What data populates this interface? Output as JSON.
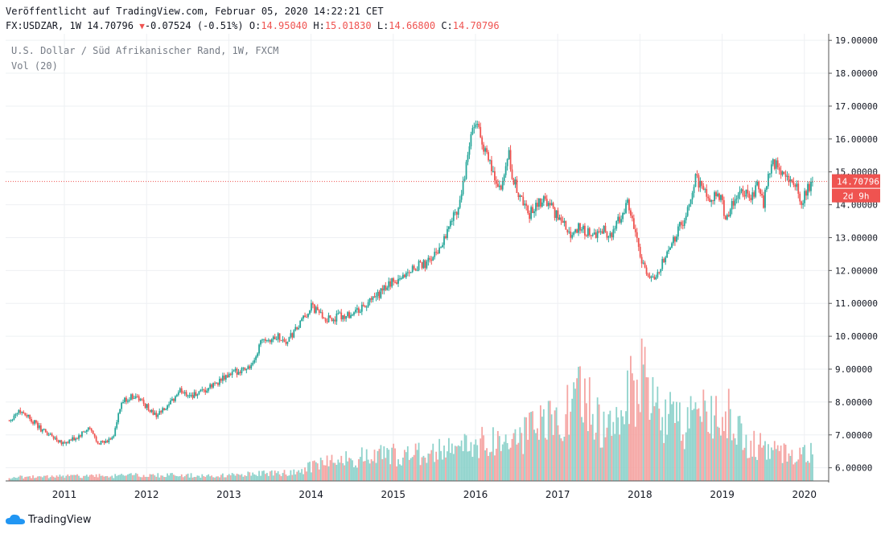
{
  "header": {
    "published": "Veröffentlicht auf TradingView.com, Februar 05, 2020 14:22:21 CET",
    "symbol_line_prefix": "FX:USDZAR, 1W 14.70796",
    "change": "-0.07524 (-0.51%)",
    "o_label": "O:",
    "o_value": "14.95040",
    "h_label": "H:",
    "h_value": "15.01830",
    "l_label": "L:",
    "l_value": "14.66800",
    "c_label": "C:",
    "c_value": "14.70796"
  },
  "legend": {
    "title": "U.S. Dollar / Süd Afrikanischer Rand, 1W, FXCM",
    "volume": "Vol (20)"
  },
  "footer": {
    "brand": "TradingView"
  },
  "colors": {
    "up": "#26a69a",
    "down": "#ef5350",
    "up_vol": "#8fd3cc",
    "down_vol": "#f5a5a3",
    "grid": "#eef0f3"
  },
  "chart_data": {
    "type": "candlestick",
    "symbol": "FX:USDZAR",
    "interval": "1W",
    "x_ticks": [
      "2011",
      "2012",
      "2013",
      "2014",
      "2015",
      "2016",
      "2017",
      "2018",
      "2019",
      "2020"
    ],
    "y_ticks": [
      "6.00000",
      "7.00000",
      "8.00000",
      "9.00000",
      "10.00000",
      "11.00000",
      "12.00000",
      "13.00000",
      "14.00000",
      "15.00000",
      "16.00000",
      "17.00000",
      "18.00000",
      "19.00000"
    ],
    "ylim": [
      5.6,
      19.2
    ],
    "last_price": "14.70796",
    "countdown": "2d 9h",
    "close_path": [
      {
        "t": 2010.33,
        "v": 7.45
      },
      {
        "t": 2010.45,
        "v": 7.75
      },
      {
        "t": 2010.55,
        "v": 7.6
      },
      {
        "t": 2010.7,
        "v": 7.2
      },
      {
        "t": 2010.85,
        "v": 6.95
      },
      {
        "t": 2011.0,
        "v": 6.75
      },
      {
        "t": 2011.15,
        "v": 6.9
      },
      {
        "t": 2011.3,
        "v": 7.2
      },
      {
        "t": 2011.4,
        "v": 6.8
      },
      {
        "t": 2011.5,
        "v": 6.75
      },
      {
        "t": 2011.6,
        "v": 7.0
      },
      {
        "t": 2011.7,
        "v": 8.0
      },
      {
        "t": 2011.85,
        "v": 8.2
      },
      {
        "t": 2011.95,
        "v": 8.0
      },
      {
        "t": 2012.1,
        "v": 7.6
      },
      {
        "t": 2012.25,
        "v": 7.8
      },
      {
        "t": 2012.4,
        "v": 8.35
      },
      {
        "t": 2012.55,
        "v": 8.2
      },
      {
        "t": 2012.7,
        "v": 8.3
      },
      {
        "t": 2012.85,
        "v": 8.6
      },
      {
        "t": 2013.0,
        "v": 8.8
      },
      {
        "t": 2013.15,
        "v": 9.0
      },
      {
        "t": 2013.3,
        "v": 9.1
      },
      {
        "t": 2013.4,
        "v": 10.0
      },
      {
        "t": 2013.5,
        "v": 9.9
      },
      {
        "t": 2013.6,
        "v": 10.0
      },
      {
        "t": 2013.7,
        "v": 9.8
      },
      {
        "t": 2013.85,
        "v": 10.3
      },
      {
        "t": 2014.0,
        "v": 10.9
      },
      {
        "t": 2014.1,
        "v": 10.7
      },
      {
        "t": 2014.2,
        "v": 10.5
      },
      {
        "t": 2014.35,
        "v": 10.6
      },
      {
        "t": 2014.5,
        "v": 10.7
      },
      {
        "t": 2014.65,
        "v": 10.9
      },
      {
        "t": 2014.8,
        "v": 11.2
      },
      {
        "t": 2014.95,
        "v": 11.6
      },
      {
        "t": 2015.1,
        "v": 11.8
      },
      {
        "t": 2015.25,
        "v": 12.1
      },
      {
        "t": 2015.4,
        "v": 12.2
      },
      {
        "t": 2015.55,
        "v": 12.6
      },
      {
        "t": 2015.7,
        "v": 13.5
      },
      {
        "t": 2015.8,
        "v": 14.0
      },
      {
        "t": 2015.88,
        "v": 15.0
      },
      {
        "t": 2015.95,
        "v": 16.2
      },
      {
        "t": 2016.03,
        "v": 16.4
      },
      {
        "t": 2016.12,
        "v": 15.6
      },
      {
        "t": 2016.25,
        "v": 14.7
      },
      {
        "t": 2016.32,
        "v": 14.4
      },
      {
        "t": 2016.4,
        "v": 15.6
      },
      {
        "t": 2016.45,
        "v": 14.8
      },
      {
        "t": 2016.55,
        "v": 14.2
      },
      {
        "t": 2016.65,
        "v": 13.7
      },
      {
        "t": 2016.75,
        "v": 14.0
      },
      {
        "t": 2016.85,
        "v": 14.2
      },
      {
        "t": 2016.95,
        "v": 13.8
      },
      {
        "t": 2017.05,
        "v": 13.5
      },
      {
        "t": 2017.15,
        "v": 13.1
      },
      {
        "t": 2017.25,
        "v": 13.3
      },
      {
        "t": 2017.35,
        "v": 13.2
      },
      {
        "t": 2017.45,
        "v": 13.0
      },
      {
        "t": 2017.55,
        "v": 13.3
      },
      {
        "t": 2017.65,
        "v": 13.0
      },
      {
        "t": 2017.75,
        "v": 13.6
      },
      {
        "t": 2017.85,
        "v": 14.1
      },
      {
        "t": 2017.92,
        "v": 13.4
      },
      {
        "t": 2018.0,
        "v": 12.4
      },
      {
        "t": 2018.1,
        "v": 11.9
      },
      {
        "t": 2018.2,
        "v": 11.8
      },
      {
        "t": 2018.3,
        "v": 12.4
      },
      {
        "t": 2018.4,
        "v": 12.9
      },
      {
        "t": 2018.5,
        "v": 13.4
      },
      {
        "t": 2018.55,
        "v": 13.4
      },
      {
        "t": 2018.62,
        "v": 14.3
      },
      {
        "t": 2018.68,
        "v": 14.8
      },
      {
        "t": 2018.75,
        "v": 14.5
      },
      {
        "t": 2018.85,
        "v": 14.2
      },
      {
        "t": 2018.95,
        "v": 14.4
      },
      {
        "t": 2019.05,
        "v": 13.6
      },
      {
        "t": 2019.15,
        "v": 14.2
      },
      {
        "t": 2019.25,
        "v": 14.4
      },
      {
        "t": 2019.35,
        "v": 14.2
      },
      {
        "t": 2019.42,
        "v": 14.6
      },
      {
        "t": 2019.5,
        "v": 14.0
      },
      {
        "t": 2019.6,
        "v": 15.3
      },
      {
        "t": 2019.7,
        "v": 15.1
      },
      {
        "t": 2019.8,
        "v": 14.8
      },
      {
        "t": 2019.9,
        "v": 14.6
      },
      {
        "t": 2019.96,
        "v": 14.1
      },
      {
        "t": 2020.05,
        "v": 14.5
      },
      {
        "t": 2020.1,
        "v": 14.71
      }
    ],
    "volume_path": [
      {
        "t": 2010.33,
        "v": 0.08
      },
      {
        "t": 2011.0,
        "v": 0.1
      },
      {
        "t": 2012.0,
        "v": 0.12
      },
      {
        "t": 2013.0,
        "v": 0.12
      },
      {
        "t": 2013.8,
        "v": 0.2
      },
      {
        "t": 2014.0,
        "v": 0.3
      },
      {
        "t": 2014.5,
        "v": 0.5
      },
      {
        "t": 2015.0,
        "v": 0.55
      },
      {
        "t": 2015.5,
        "v": 0.6
      },
      {
        "t": 2016.0,
        "v": 0.8
      },
      {
        "t": 2016.5,
        "v": 0.9
      },
      {
        "t": 2017.0,
        "v": 1.3
      },
      {
        "t": 2017.3,
        "v": 1.8
      },
      {
        "t": 2017.6,
        "v": 1.0
      },
      {
        "t": 2017.9,
        "v": 1.9
      },
      {
        "t": 2018.0,
        "v": 2.3
      },
      {
        "t": 2018.2,
        "v": 1.5
      },
      {
        "t": 2018.5,
        "v": 1.2
      },
      {
        "t": 2018.7,
        "v": 1.3
      },
      {
        "t": 2019.0,
        "v": 1.6
      },
      {
        "t": 2019.3,
        "v": 0.8
      },
      {
        "t": 2019.7,
        "v": 0.6
      },
      {
        "t": 2020.1,
        "v": 0.6
      }
    ]
  }
}
